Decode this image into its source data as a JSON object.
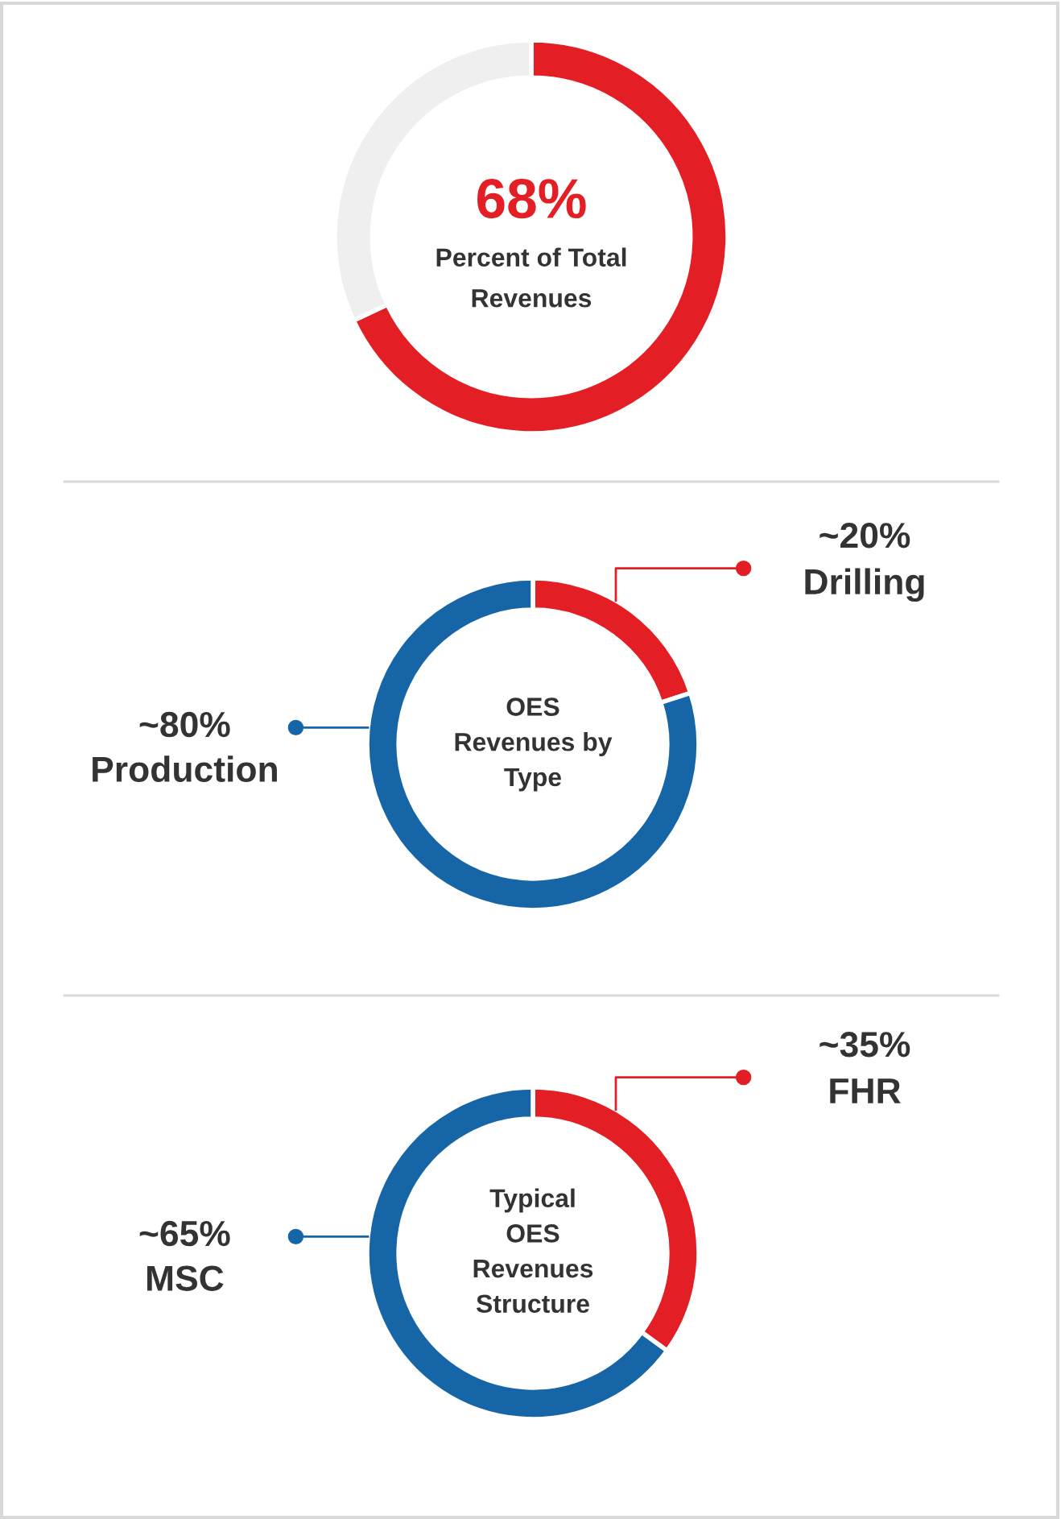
{
  "chart_data": [
    {
      "type": "donut",
      "title": "Percent of Total\nRevenues",
      "categories": [
        null,
        null
      ],
      "values": [
        68,
        32
      ],
      "colors": [
        "#e31e24",
        "#efefef"
      ],
      "value_labels": [
        "68%",
        null
      ]
    },
    {
      "type": "donut",
      "title": "OES\nRevenues by\nType",
      "categories": [
        "Drilling",
        "Production"
      ],
      "values": [
        20,
        80
      ],
      "colors": [
        "#e31e24",
        "#1565a7"
      ],
      "value_labels": [
        "~20%",
        "~80%"
      ]
    },
    {
      "type": "donut",
      "title": "Typical\nOES\nRevenues\nStructure",
      "categories": [
        "FHR",
        "MSC"
      ],
      "values": [
        35,
        65
      ],
      "colors": [
        "#e31e24",
        "#1565a7"
      ],
      "value_labels": [
        "~35%",
        "~65%"
      ]
    }
  ]
}
